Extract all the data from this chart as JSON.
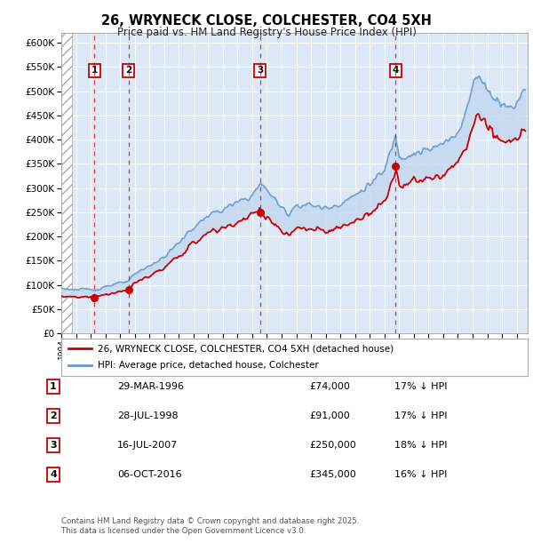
{
  "title": "26, WRYNECK CLOSE, COLCHESTER, CO4 5XH",
  "subtitle": "Price paid vs. HM Land Registry's House Price Index (HPI)",
  "ylim": [
    0,
    620000
  ],
  "yticks": [
    0,
    50000,
    100000,
    150000,
    200000,
    250000,
    300000,
    350000,
    400000,
    450000,
    500000,
    550000,
    600000
  ],
  "ytick_labels": [
    "£0",
    "£50K",
    "£100K",
    "£150K",
    "£200K",
    "£250K",
    "£300K",
    "£350K",
    "£400K",
    "£450K",
    "£500K",
    "£550K",
    "£600K"
  ],
  "xlim_start": 1994.0,
  "xlim_end": 2025.75,
  "background_color": "#ffffff",
  "plot_bg_color": "#dce8f5",
  "grid_color": "#ffffff",
  "sale_points": [
    {
      "date_num": 1996.247,
      "price": 74000,
      "label": "1"
    },
    {
      "date_num": 1998.572,
      "price": 91000,
      "label": "2"
    },
    {
      "date_num": 2007.54,
      "price": 250000,
      "label": "3"
    },
    {
      "date_num": 2016.764,
      "price": 345000,
      "label": "4"
    }
  ],
  "legend_entries": [
    {
      "color": "#cc0000",
      "label": "26, WRYNECK CLOSE, COLCHESTER, CO4 5XH (detached house)"
    },
    {
      "color": "#6699cc",
      "label": "HPI: Average price, detached house, Colchester"
    }
  ],
  "table_rows": [
    {
      "num": "1",
      "date": "29-MAR-1996",
      "price": "£74,000",
      "hpi": "17% ↓ HPI"
    },
    {
      "num": "2",
      "date": "28-JUL-1998",
      "price": "£91,000",
      "hpi": "17% ↓ HPI"
    },
    {
      "num": "3",
      "date": "16-JUL-2007",
      "price": "£250,000",
      "hpi": "18% ↓ HPI"
    },
    {
      "num": "4",
      "date": "06-OCT-2016",
      "price": "£345,000",
      "hpi": "16% ↓ HPI"
    }
  ],
  "footer": "Contains HM Land Registry data © Crown copyright and database right 2025.\nThis data is licensed under the Open Government Licence v3.0.",
  "red_line_color": "#cc0000",
  "blue_line_color": "#6699cc",
  "fill_color": "#dce8f5"
}
